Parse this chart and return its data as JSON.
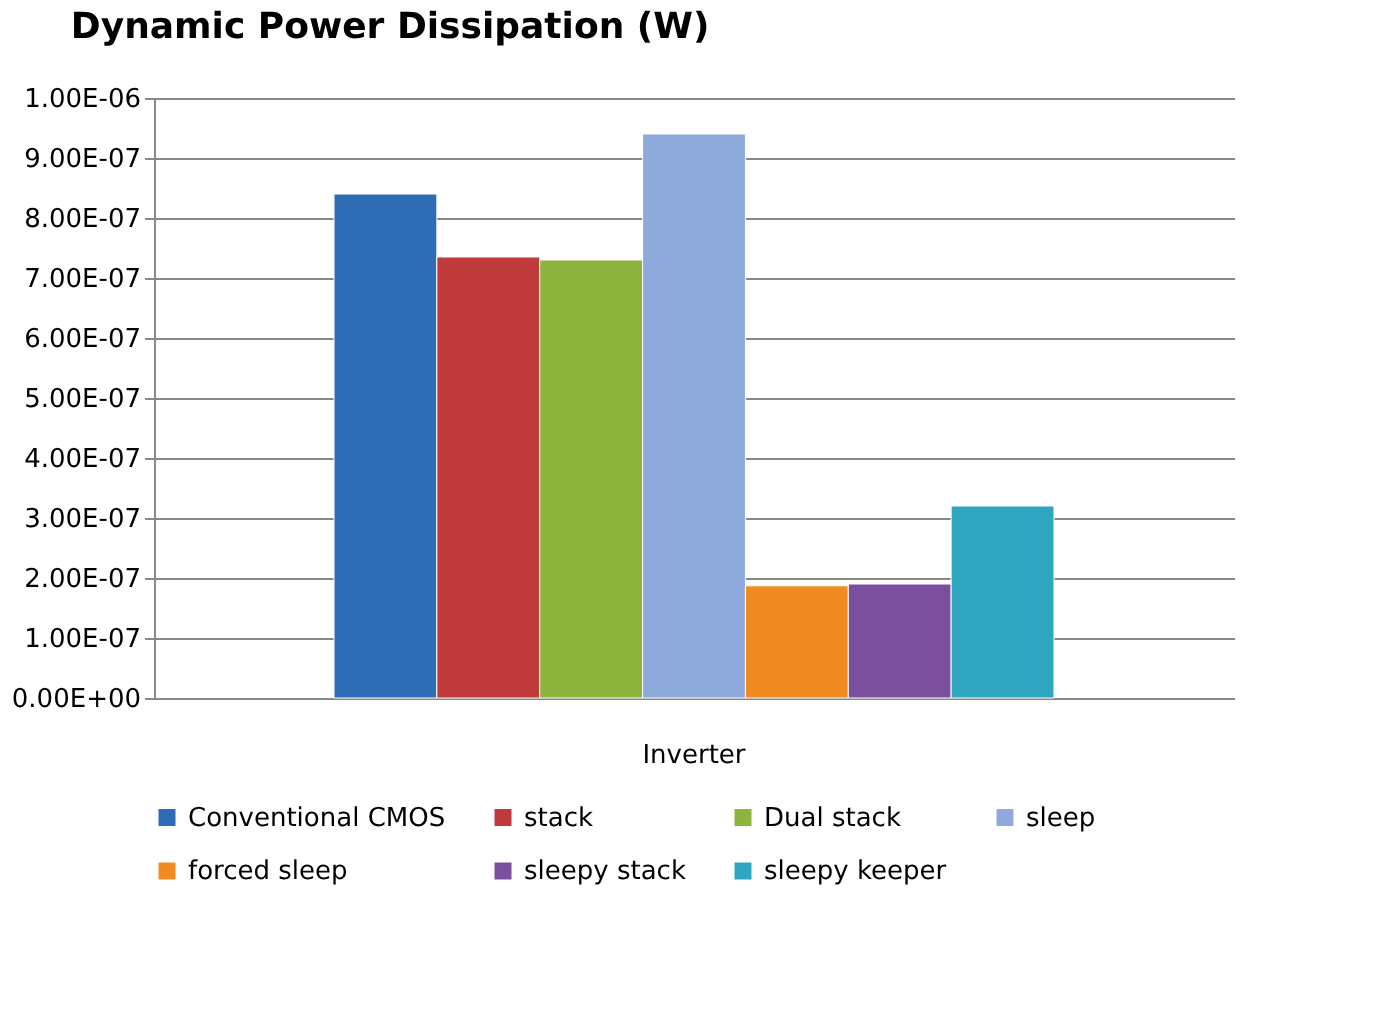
{
  "chart_data": {
    "type": "bar",
    "title": "Dynamic Power Dissipation (W)",
    "categories": [
      "Inverter"
    ],
    "series": [
      {
        "name": "Conventional CMOS",
        "color": "#2e6db5",
        "values": [
          8.4e-07
        ]
      },
      {
        "name": "stack",
        "color": "#c0393b",
        "values": [
          7.35e-07
        ]
      },
      {
        "name": "Dual stack",
        "color": "#8db43c",
        "values": [
          7.3e-07
        ]
      },
      {
        "name": "sleep",
        "color": "#8eaadc",
        "values": [
          9.4e-07
        ]
      },
      {
        "name": "forced sleep",
        "color": "#f08a23",
        "values": [
          1.87e-07
        ]
      },
      {
        "name": "sleepy stack",
        "color": "#7b4f9d",
        "values": [
          1.9e-07
        ]
      },
      {
        "name": "sleepy keeper",
        "color": "#2fa6c0",
        "values": [
          3.2e-07
        ]
      }
    ],
    "ylim": [
      0,
      1e-06
    ],
    "yticks": [
      {
        "value": 0,
        "label": "0.00E+00"
      },
      {
        "value": 1e-07,
        "label": "1.00E-07"
      },
      {
        "value": 2e-07,
        "label": "2.00E-07"
      },
      {
        "value": 3e-07,
        "label": "3.00E-07"
      },
      {
        "value": 4e-07,
        "label": "4.00E-07"
      },
      {
        "value": 5e-07,
        "label": "5.00E-07"
      },
      {
        "value": 6e-07,
        "label": "6.00E-07"
      },
      {
        "value": 7e-07,
        "label": "7.00E-07"
      },
      {
        "value": 8e-07,
        "label": "8.00E-07"
      },
      {
        "value": 9e-07,
        "label": "9.00E-07"
      },
      {
        "value": 1e-06,
        "label": "1.00E-06"
      }
    ],
    "grid": "y",
    "legend": "bottom"
  }
}
